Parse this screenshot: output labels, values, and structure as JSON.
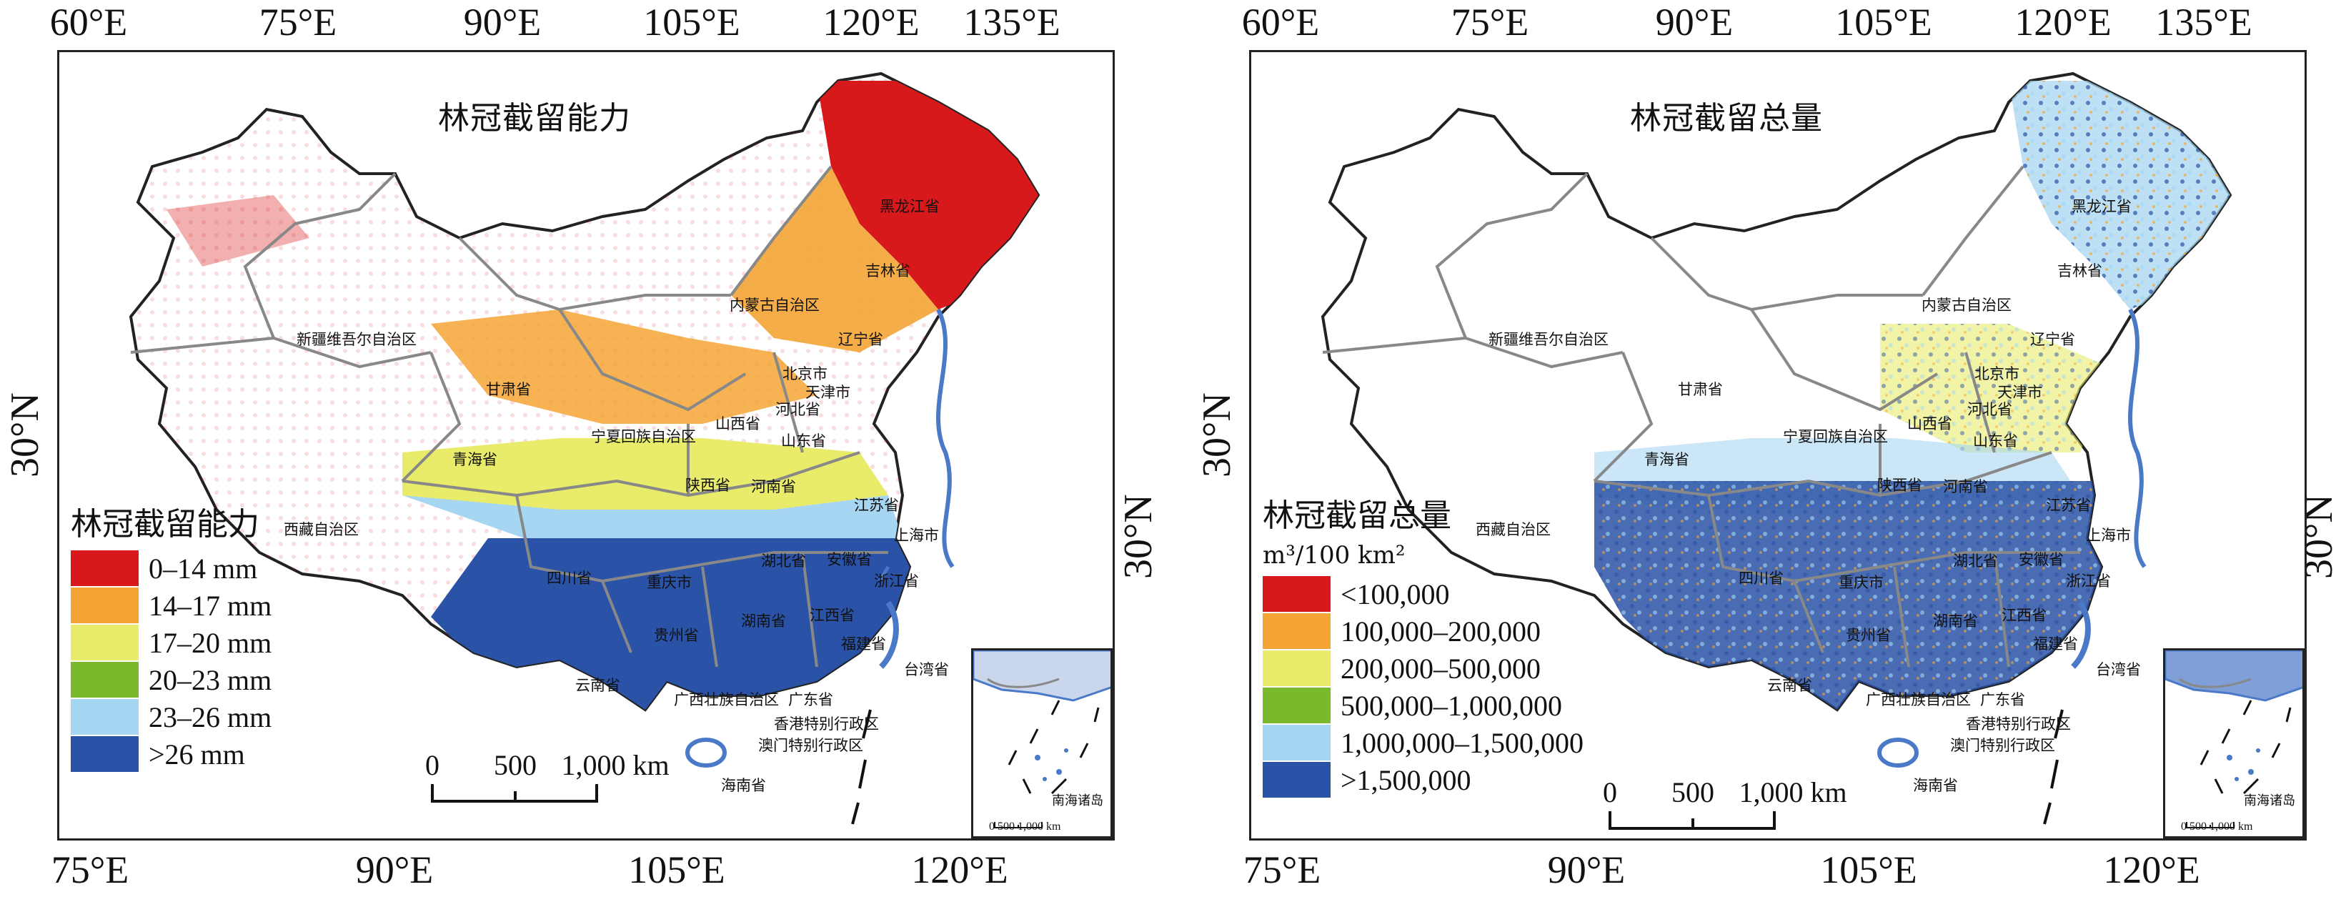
{
  "axes": {
    "top_ticks": [
      "60°E",
      "75°E",
      "90°E",
      "105°E",
      "120°E",
      "135°E"
    ],
    "bottom_ticks": [
      "75°E",
      "90°E",
      "105°E",
      "120°E"
    ],
    "lat_label": "30°N"
  },
  "panels": [
    {
      "title": "林冠截留能力",
      "legend_title": "林冠截留能力",
      "legend_unit": "",
      "legend_items": [
        {
          "label": "0–14 mm",
          "color": "#d7191c"
        },
        {
          "label": "14–17 mm",
          "color": "#f4a435"
        },
        {
          "label": "17–20 mm",
          "color": "#e8ec6a"
        },
        {
          "label": "20–23 mm",
          "color": "#7ab82c"
        },
        {
          "label": "23–26 mm",
          "color": "#a7d6f2"
        },
        {
          "label": ">26 mm",
          "color": "#2a52a6"
        }
      ],
      "scale_labels": [
        "0",
        "500",
        "1,000 km"
      ]
    },
    {
      "title": "林冠截留总量",
      "legend_title": "林冠截留总量",
      "legend_unit": "m³/100 km²",
      "legend_items": [
        {
          "label": "<100,000",
          "color": "#d7191c"
        },
        {
          "label": "100,000–200,000",
          "color": "#f4a435"
        },
        {
          "label": "200,000–500,000",
          "color": "#e8ec6a"
        },
        {
          "label": "500,000–1,000,000",
          "color": "#7ab82c"
        },
        {
          "label": "1,000,000–1,500,000",
          "color": "#a7d6f2"
        },
        {
          "label": ">1,500,000",
          "color": "#2a52a6"
        }
      ],
      "scale_labels": [
        "0",
        "500",
        "1,000 km"
      ]
    }
  ],
  "provinces": [
    "黑龙江省",
    "吉林省",
    "辽宁省",
    "内蒙古自治区",
    "新疆维吾尔自治区",
    "甘肃省",
    "北京市",
    "天津市",
    "河北省",
    "山西省",
    "山东省",
    "宁夏回族自治区",
    "青海省",
    "陕西省",
    "河南省",
    "江苏省",
    "上海市",
    "西藏自治区",
    "四川省",
    "重庆市",
    "湖北省",
    "安徽省",
    "浙江省",
    "湖南省",
    "江西省",
    "贵州省",
    "福建省",
    "台湾省",
    "云南省",
    "广西壮族自治区",
    "广东省",
    "香港特别行政区",
    "澳门特别行政区",
    "海南省"
  ],
  "inset": {
    "label": "南海诸岛",
    "scale": "0  500 1,000 km"
  }
}
